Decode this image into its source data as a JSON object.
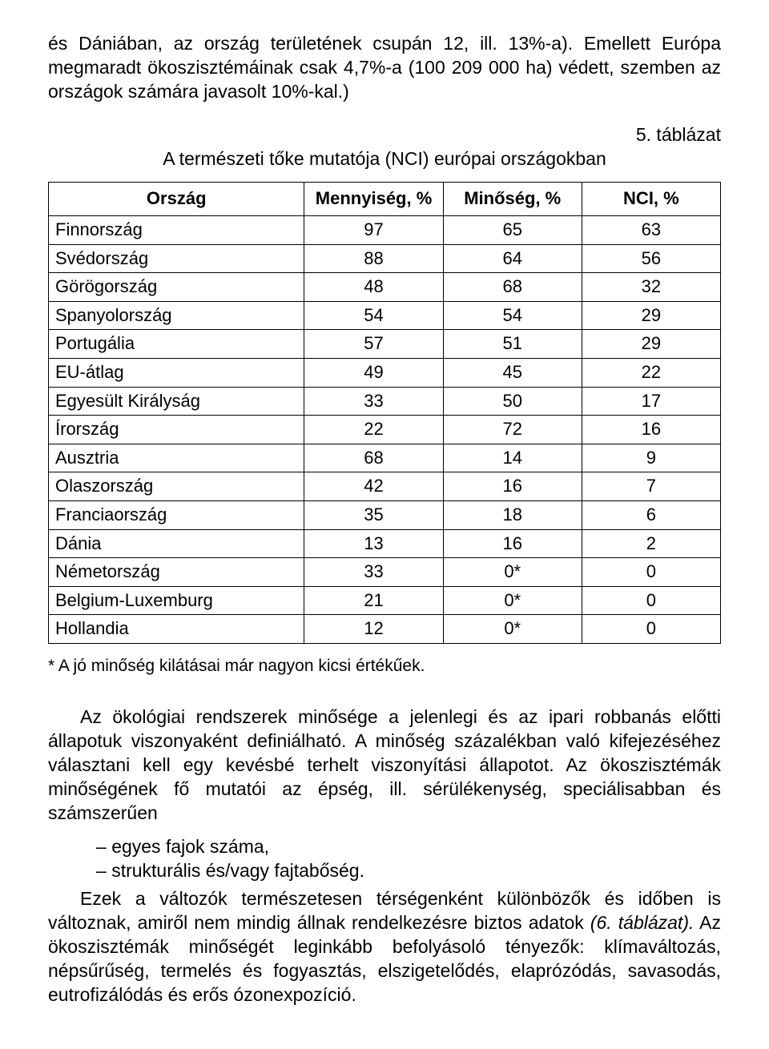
{
  "para1": "és Dániában, az ország területének csupán 12, ill. 13%-a). Emellett Európa megmaradt ökoszisztémáinak csak 4,7%-a (100 209 000 ha) védett, szemben az országok számára javasolt 10%-kal.)",
  "table_label": "5. táblázat",
  "table_caption": "A természeti tőke mutatója (NCI) európai országokban",
  "columns": [
    "Ország",
    "Mennyiség, %",
    "Minőség, %",
    "NCI, %"
  ],
  "rows": [
    [
      "Finnország",
      "97",
      "65",
      "63"
    ],
    [
      "Svédország",
      "88",
      "64",
      "56"
    ],
    [
      "Görögország",
      "48",
      "68",
      "32"
    ],
    [
      "Spanyolország",
      "54",
      "54",
      "29"
    ],
    [
      "Portugália",
      "57",
      "51",
      "29"
    ],
    [
      "EU-átlag",
      "49",
      "45",
      "22"
    ],
    [
      "Egyesült Királyság",
      "33",
      "50",
      "17"
    ],
    [
      "Írország",
      "22",
      "72",
      "16"
    ],
    [
      "Ausztria",
      "68",
      "14",
      "9"
    ],
    [
      "Olaszország",
      "42",
      "16",
      "7"
    ],
    [
      "Franciaország",
      "35",
      "18",
      "6"
    ],
    [
      "Dánia",
      "13",
      "16",
      "2"
    ],
    [
      "Németország",
      "33",
      "0*",
      "0"
    ],
    [
      "Belgium-Luxemburg",
      "21",
      "0*",
      "0"
    ],
    [
      "Hollandia",
      "12",
      "0*",
      "0"
    ]
  ],
  "footnote": "* A jó minőség kilátásai már nagyon kicsi értékűek.",
  "para2": "Az ökológiai rendszerek minősége a jelenlegi és az ipari robbanás előtti állapotuk viszonyaként definiálható. A minőség százalékban való kifejezéséhez választani kell egy kevésbé terhelt viszonyítási állapotot. Az ökoszisztémák minőségének fő mutatói az épség, ill. sérülékenység, speciálisabban és számszerűen",
  "bullets": [
    "egyes fajok száma,",
    "strukturális és/vagy fajtabőség."
  ],
  "para3_pre": "Ezek a változók természetesen térségenként különbözők és időben is változnak, amiről nem mindig állnak rendelkezésre biztos adatok ",
  "para3_italic": "(6. táblázat).",
  "para3_post": " Az ökoszisztémák minőségét leginkább befolyásoló tényezők: klímaváltozás, népsűrűség, termelés és fogyasztás, elszigetelődés, elaprózódás, savasodás, eutrofizálódás és erős ózonexpozíció."
}
